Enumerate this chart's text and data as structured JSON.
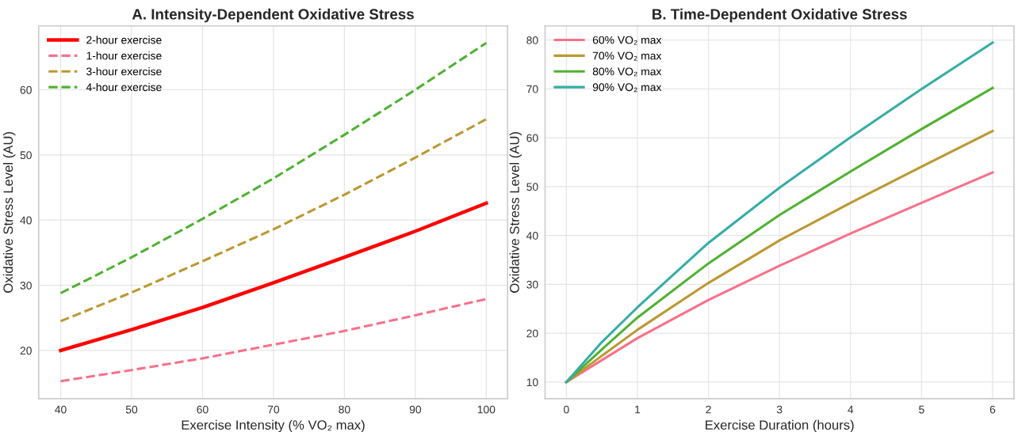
{
  "chart_data": [
    {
      "type": "line",
      "title": "A. Intensity-Dependent Oxidative Stress",
      "xlabel": "Exercise Intensity (% VO₂ max)",
      "ylabel": "Oxidative Stress Level (AU)",
      "x": [
        40,
        50,
        60,
        70,
        80,
        90,
        100
      ],
      "series": [
        {
          "name": "2-hour exercise",
          "color": "#ff0000",
          "line_style": "solid",
          "values": [
            20.0,
            23.2,
            26.6,
            30.4,
            34.3,
            38.3,
            42.6
          ]
        },
        {
          "name": "1-hour exercise",
          "color": "#f77189",
          "line_style": "dashed",
          "values": [
            15.3,
            17.0,
            18.8,
            20.9,
            23.0,
            25.4,
            27.9
          ]
        },
        {
          "name": "3-hour exercise",
          "color": "#bb9832",
          "line_style": "dashed",
          "values": [
            24.5,
            28.9,
            33.7,
            38.6,
            43.9,
            49.6,
            55.5
          ]
        },
        {
          "name": "4-hour exercise",
          "color": "#50b131",
          "line_style": "dashed",
          "values": [
            28.8,
            34.3,
            40.2,
            46.4,
            53.1,
            60.0,
            67.2
          ]
        }
      ],
      "xlim": [
        36.9,
        103
      ],
      "ylim": [
        12.6,
        69.8
      ],
      "xticks": [
        40,
        50,
        60,
        70,
        80,
        90,
        100
      ],
      "yticks": [
        20,
        30,
        40,
        50,
        60
      ],
      "grid": true,
      "legend": "top left"
    },
    {
      "type": "line",
      "title": "B. Time-Dependent Oxidative Stress",
      "xlabel": "Exercise Duration (hours)",
      "ylabel": "Oxidative Stress Level (AU)",
      "x": [
        0,
        0.5,
        1,
        2,
        3,
        4,
        5,
        6
      ],
      "series": [
        {
          "name": "60% VO₂ max",
          "color": "#f77189",
          "values": [
            10,
            14.5,
            19.0,
            26.8,
            33.8,
            40.4,
            46.7,
            52.9
          ]
        },
        {
          "name": "70% VO₂ max",
          "color": "#bb9832",
          "values": [
            10,
            15.4,
            20.7,
            30.3,
            39.0,
            46.7,
            54.1,
            61.4
          ]
        },
        {
          "name": "80% VO₂ max",
          "color": "#50b131",
          "values": [
            10,
            16.7,
            23.2,
            34.3,
            44.2,
            53.1,
            61.8,
            70.2
          ]
        },
        {
          "name": "90% VO₂ max",
          "color": "#36ada4",
          "values": [
            10,
            18.2,
            25.3,
            38.5,
            49.8,
            60.1,
            70.0,
            79.5
          ]
        }
      ],
      "xlim": [
        -0.3,
        6.3
      ],
      "ylim": [
        6.6,
        82.9
      ],
      "xticks": [
        0,
        1,
        2,
        3,
        4,
        5,
        6
      ],
      "yticks": [
        10,
        20,
        30,
        40,
        50,
        60,
        70,
        80
      ],
      "grid": true,
      "legend": "top left"
    }
  ]
}
